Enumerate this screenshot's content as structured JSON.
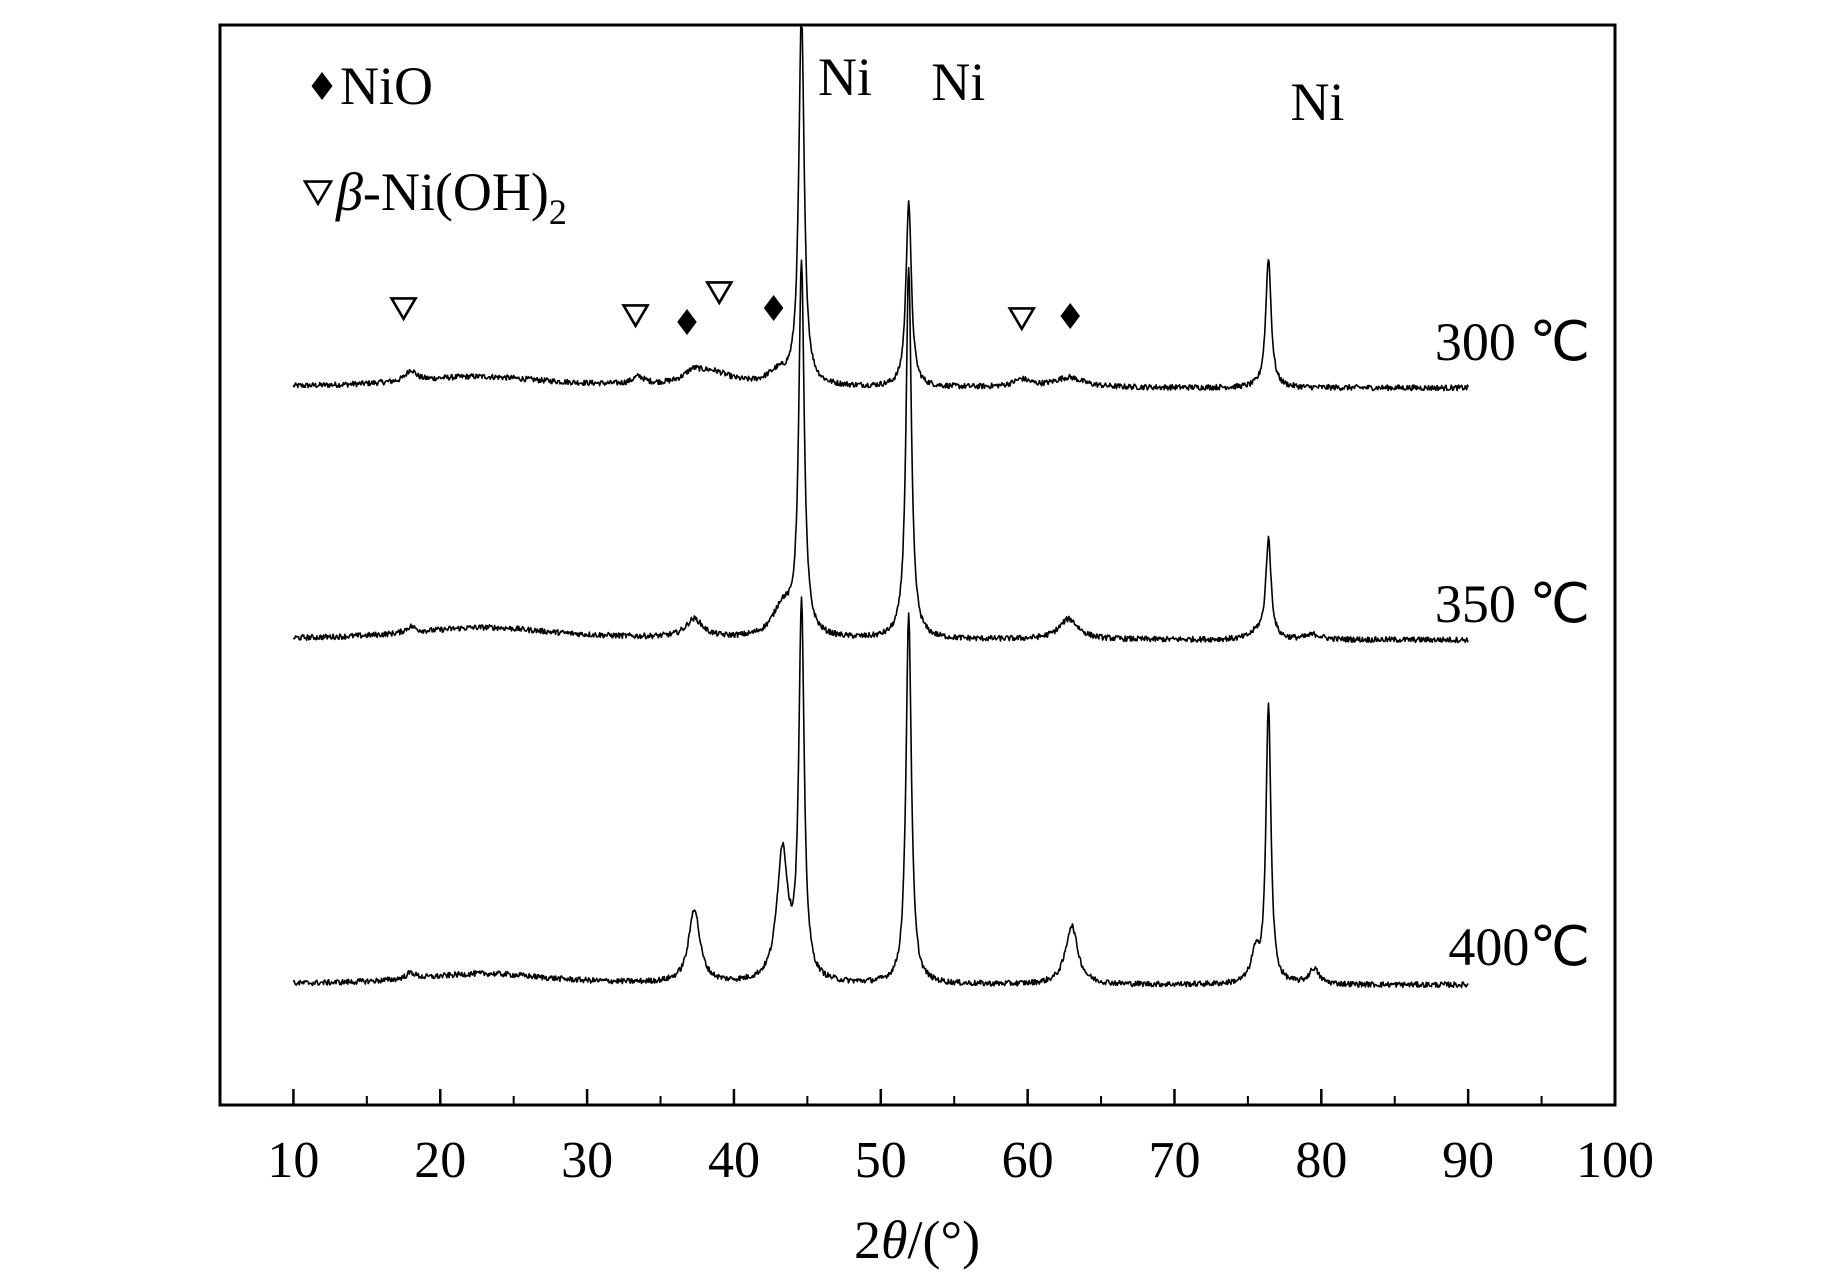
{
  "chart_data": {
    "type": "line",
    "title": "",
    "xlabel": "2θ/(°)",
    "xlabel_parts": {
      "var": "θ",
      "prefix": "2",
      "suffix": "/(°)"
    },
    "ylabel": "",
    "xlim": [
      5,
      100
    ],
    "xticks": [
      10,
      20,
      30,
      40,
      50,
      60,
      70,
      80,
      90,
      100
    ],
    "y_axis_ticks": false,
    "grid": false,
    "legend": {
      "placement": "top-left",
      "entries": [
        {
          "symbol": "diamond-filled",
          "text": "NiO"
        },
        {
          "symbol": "triangle-down-open",
          "text_italic": "β",
          "text_rest": "-Ni(OH)",
          "subscript": "2"
        }
      ]
    },
    "peak_labels": [
      {
        "text": "Ni",
        "x": 44.5
      },
      {
        "text": "Ni",
        "x": 51.8
      },
      {
        "text": "Ni",
        "x": 76.4
      }
    ],
    "phase_markers": [
      {
        "symbol": "triangle-down-open",
        "x": 17.5,
        "series": "300 ℃"
      },
      {
        "symbol": "triangle-down-open",
        "x": 33.3,
        "series": "300 ℃"
      },
      {
        "symbol": "diamond-filled",
        "x": 36.8,
        "series": "300 ℃"
      },
      {
        "symbol": "triangle-down-open",
        "x": 39.0,
        "series": "300 ℃"
      },
      {
        "symbol": "diamond-filled",
        "x": 42.7,
        "series": "300 ℃"
      },
      {
        "symbol": "triangle-down-open",
        "x": 59.6,
        "series": "300 ℃"
      },
      {
        "symbol": "diamond-filled",
        "x": 62.9,
        "series": "300 ℃"
      }
    ],
    "series": [
      {
        "name": "300 ℃",
        "x_range": [
          10,
          90
        ],
        "baseline": 0.0,
        "offset": 2.0,
        "peaks": [
          {
            "x": 18.0,
            "h": 0.18,
            "w": 0.4
          },
          {
            "x": 22.5,
            "h": 0.18,
            "w": 6.0
          },
          {
            "x": 33.5,
            "h": 0.12,
            "w": 0.5
          },
          {
            "x": 37.2,
            "h": 0.15,
            "w": 0.7
          },
          {
            "x": 38.5,
            "h": 0.22,
            "w": 1.6
          },
          {
            "x": 43.0,
            "h": 0.2,
            "w": 0.9
          },
          {
            "x": 44.6,
            "h": 6.0,
            "w": 0.22
          },
          {
            "x": 51.9,
            "h": 3.0,
            "w": 0.22
          },
          {
            "x": 59.6,
            "h": 0.12,
            "w": 0.7
          },
          {
            "x": 62.8,
            "h": 0.16,
            "w": 1.2
          },
          {
            "x": 76.4,
            "h": 2.1,
            "w": 0.22
          }
        ]
      },
      {
        "name": "350 ℃",
        "x_range": [
          10,
          90
        ],
        "baseline": 0.0,
        "offset": 1.0,
        "peaks": [
          {
            "x": 18.0,
            "h": 0.1,
            "w": 0.4
          },
          {
            "x": 23.0,
            "h": 0.2,
            "w": 6.0
          },
          {
            "x": 37.3,
            "h": 0.3,
            "w": 0.7
          },
          {
            "x": 43.3,
            "h": 0.5,
            "w": 0.8
          },
          {
            "x": 44.6,
            "h": 6.0,
            "w": 0.22
          },
          {
            "x": 51.9,
            "h": 6.0,
            "w": 0.22
          },
          {
            "x": 62.8,
            "h": 0.33,
            "w": 0.8
          },
          {
            "x": 75.6,
            "h": 0.1,
            "w": 0.5
          },
          {
            "x": 76.4,
            "h": 1.6,
            "w": 0.22
          },
          {
            "x": 79.5,
            "h": 0.08,
            "w": 0.6
          }
        ]
      },
      {
        "name": "400℃",
        "x_range": [
          10,
          90
        ],
        "baseline": 0.0,
        "offset": 0.0,
        "peaks": [
          {
            "x": 18.0,
            "h": 0.1,
            "w": 0.4
          },
          {
            "x": 23.0,
            "h": 0.18,
            "w": 5.5
          },
          {
            "x": 37.3,
            "h": 1.2,
            "w": 0.45
          },
          {
            "x": 43.3,
            "h": 2.1,
            "w": 0.45
          },
          {
            "x": 44.6,
            "h": 6.0,
            "w": 0.22
          },
          {
            "x": 51.9,
            "h": 6.0,
            "w": 0.22
          },
          {
            "x": 63.0,
            "h": 0.95,
            "w": 0.5
          },
          {
            "x": 75.5,
            "h": 0.45,
            "w": 0.35
          },
          {
            "x": 76.4,
            "h": 4.5,
            "w": 0.2
          },
          {
            "x": 79.5,
            "h": 0.25,
            "w": 0.4
          }
        ]
      }
    ]
  }
}
